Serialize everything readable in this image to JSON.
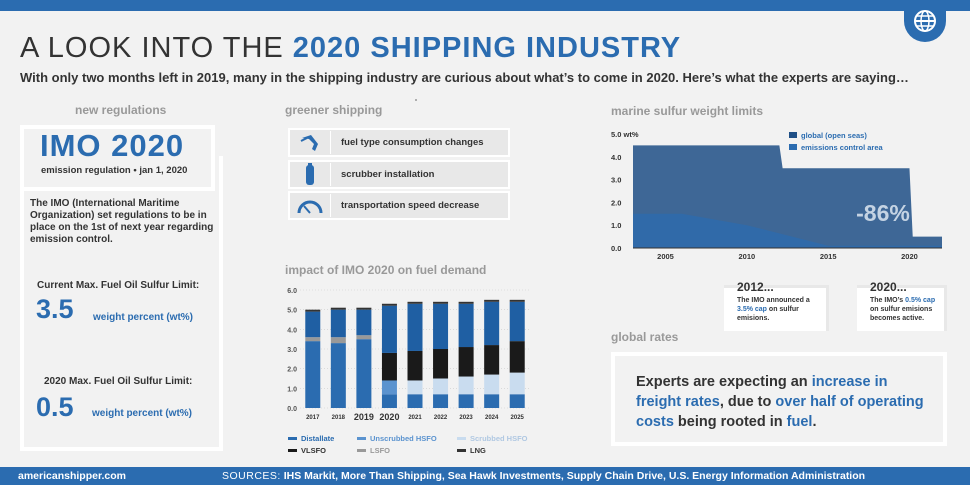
{
  "header": {
    "title_prefix": "A LOOK INTO THE ",
    "title_highlight": "2020 SHIPPING INDUSTRY",
    "subtitle": "With only two months left in 2019, many in the shipping industry are curious about what’s to come in 2020. Here’s what the experts are saying…",
    "logo_icon": "globe-icon"
  },
  "colors": {
    "brand": "#2b6cb0",
    "dark": "#1f4f86",
    "light": "#8fb7e0",
    "lightest": "#c9dcef",
    "grey": "#999999",
    "black": "#222222"
  },
  "new_regulations": {
    "label": "new regulations",
    "imo_title": "IMO 2020",
    "imo_sub_a": "emission regulation",
    "imo_sub_sep": "•",
    "imo_sub_b": "jan 1, 2020",
    "description": "The IMO (International Maritime Organization) set regulations to be in place on the 1st of next year regarding emission control.",
    "current_label": "Current Max. Fuel Oil Sulfur Limit:",
    "current_value": "3.5",
    "current_unit": "weight percent (wt%)",
    "future_label": "2020 Max. Fuel Oil Sulfur Limit:",
    "future_value": "0.5",
    "future_unit": "weight percent (wt%)"
  },
  "greener_shipping": {
    "label": "greener shipping",
    "items": [
      {
        "icon": "fuel-pump-icon",
        "label": "fuel type consumption changes"
      },
      {
        "icon": "scrubber-icon",
        "label": "scrubber installation"
      },
      {
        "icon": "speedometer-icon",
        "label": "transportation speed decrease"
      }
    ]
  },
  "fuel_demand": {
    "label": "impact of IMO 2020 on fuel demand",
    "legend": [
      {
        "name": "Distallate",
        "color": "#2b6cb0"
      },
      {
        "name": "Unscrubbed HSFO",
        "color": "#5b93cf"
      },
      {
        "name": "Scrubbed HSFO",
        "color": "#c9dcef"
      },
      {
        "name": "VLSFO",
        "color": "#1a1a1a"
      },
      {
        "name": "LSFO",
        "color": "#999999"
      },
      {
        "name": "LNG",
        "color": "#333333"
      }
    ]
  },
  "sulfur_limits": {
    "label": "marine sulfur weight limits",
    "badge": "-86%",
    "notes": [
      {
        "title": "2012...",
        "pre": "The IMO announced a ",
        "highlight": "3.5% cap",
        "post": " on sulfur emisions."
      },
      {
        "title": "2020...",
        "pre": "The IMO’s ",
        "highlight": "0.5% cap",
        "post": " on sulfur emisions becomes active."
      }
    ]
  },
  "chart_data": [
    {
      "type": "bar",
      "title": "impact of IMO 2020 on fuel demand",
      "categories": [
        "2017",
        "2018",
        "2019",
        "2020",
        "2021",
        "2022",
        "2023",
        "2024",
        "2025"
      ],
      "highlighted_categories": [
        "2019",
        "2020"
      ],
      "ylim": [
        0,
        6.0
      ],
      "yticks": [
        "0.0",
        "1.0",
        "2.0",
        "3.0",
        "4.0",
        "5.0",
        "6.0"
      ],
      "series": [
        {
          "name": "Distallate",
          "color": "#2b6cb0",
          "values": [
            3.4,
            3.3,
            3.5,
            0.7,
            0.7,
            0.7,
            0.7,
            0.7,
            0.7
          ]
        },
        {
          "name": "Unscrubbed HSFO",
          "color": "#5b93cf",
          "values": [
            0,
            0,
            0,
            0.7,
            0,
            0,
            0,
            0,
            0
          ]
        },
        {
          "name": "Scrubbed HSFO",
          "color": "#c9dcef",
          "values": [
            0,
            0,
            0,
            0,
            0.7,
            0.8,
            0.9,
            1.0,
            1.1
          ]
        },
        {
          "name": "LSFO",
          "color": "#999999",
          "values": [
            0.2,
            0.3,
            0.2,
            0,
            0,
            0,
            0,
            0,
            0
          ]
        },
        {
          "name": "VLSFO",
          "color": "#1a1a1a",
          "values": [
            0,
            0,
            0,
            1.4,
            1.5,
            1.5,
            1.5,
            1.5,
            1.6
          ]
        },
        {
          "name": "Distallate (upper)",
          "color": "#1f5fa3",
          "values": [
            1.3,
            1.4,
            1.3,
            2.4,
            2.4,
            2.3,
            2.2,
            2.2,
            2.0
          ]
        },
        {
          "name": "LNG",
          "color": "#333333",
          "values": [
            0.1,
            0.1,
            0.1,
            0.1,
            0.1,
            0.1,
            0.1,
            0.1,
            0.1
          ]
        }
      ]
    },
    {
      "type": "area",
      "title": "marine sulfur weight limits",
      "ylabel": "wt%",
      "x": [
        2003,
        2004,
        2010,
        2012,
        2015,
        2020,
        2022
      ],
      "xticks": [
        "2005",
        "2010",
        "2015",
        "2020"
      ],
      "yticks": [
        "0.0",
        "1.0",
        "2.0",
        "3.0",
        "4.0",
        "5.0 wt%"
      ],
      "ylim": [
        0,
        5.0
      ],
      "series": [
        {
          "name": "global (open seas)",
          "color": "#1f4f86",
          "x": [
            2003,
            2010,
            2010.2,
            2012,
            2012.2,
            2020,
            2020.2,
            2022
          ],
          "values": [
            4.5,
            4.5,
            4.5,
            4.5,
            3.5,
            3.5,
            0.5,
            0.5
          ]
        },
        {
          "name": "emissions control area",
          "color": "#2b6cb0",
          "x": [
            2003,
            2006,
            2010,
            2015,
            2020,
            2022
          ],
          "values": [
            1.5,
            1.5,
            1.0,
            0.1,
            0.1,
            0.1
          ]
        }
      ],
      "annotation": "-86%"
    }
  ],
  "global_rates": {
    "label": "global rates",
    "t1": "Experts are expecting an ",
    "t2": "increase in freight rates",
    "t3": ", due to ",
    "t4": "over half of operating costs",
    "t5": " being rooted in ",
    "t6": "fuel",
    "t7": "."
  },
  "footer": {
    "site": "americanshipper.com",
    "sources_label": "SOURCES:",
    "sources": "IHS Markit, More Than Shipping, Sea Hawk Investments, Supply Chain Drive, U.S. Energy Information Administration"
  }
}
